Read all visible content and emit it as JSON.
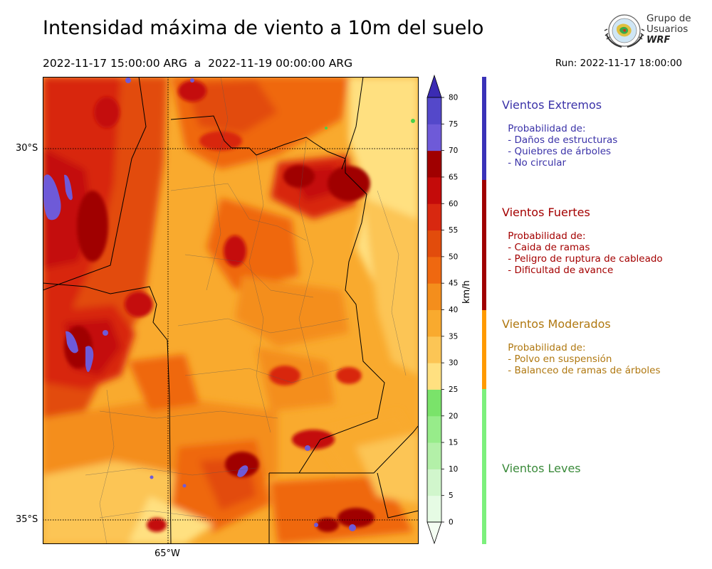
{
  "header": {
    "title": "Intensidad máxima de viento a 10m del suelo",
    "subtitle_start": "2022-11-17 15:00:00 ARG",
    "subtitle_sep": "a",
    "subtitle_end": "2022-11-19 00:00:00 ARG",
    "run": "Run: 2022-11-17 18:00:00"
  },
  "logo": {
    "line1": "Grupo de",
    "line2": "Usuarios",
    "line3": "WRF"
  },
  "map": {
    "lat_labels": [
      "30°S",
      "35°S"
    ],
    "lon_labels": [
      "65°W"
    ]
  },
  "colorbar": {
    "unit": "km/h",
    "ticks": [
      "0",
      "5",
      "10",
      "15",
      "20",
      "25",
      "30",
      "35",
      "40",
      "45",
      "50",
      "55",
      "60",
      "65",
      "70",
      "75",
      "80"
    ],
    "colors": [
      "#e6fbe4",
      "#d1f6cc",
      "#b3f0a8",
      "#97ec8a",
      "#7ae36a",
      "#ffe080",
      "#fcc555",
      "#f9aa2e",
      "#f48e1c",
      "#ef6810",
      "#e24c0c",
      "#d82810",
      "#c40b0a",
      "#a00000",
      "#6e5ad8",
      "#5448ca",
      "#3b2bb3"
    ]
  },
  "legend": [
    {
      "title": "Vientos Extremos",
      "color": "#3a32a8",
      "lines": [
        " Probabilidad de:",
        " - Daños de estructuras",
        " - Quiebres de árboles",
        " - No circular"
      ]
    },
    {
      "title": "Vientos Fuertes",
      "color": "#a40000",
      "lines": [
        " Probabilidad de:",
        " - Caida de ramas",
        " - Peligro de ruptura de cableado",
        " - Dificultad de avance"
      ]
    },
    {
      "title": "Vientos Moderados",
      "color": "#b07810",
      "lines": [
        " Probabilidad de:",
        " - Polvo en suspensión",
        " - Balanceo de ramas de árboles"
      ]
    },
    {
      "title": "Vientos Leves",
      "color": "#3a8a3a",
      "lines": []
    }
  ],
  "legend_bar_colors": [
    "#3a32b8",
    "#a00000",
    "#ff9a00",
    "#7cf07c"
  ]
}
